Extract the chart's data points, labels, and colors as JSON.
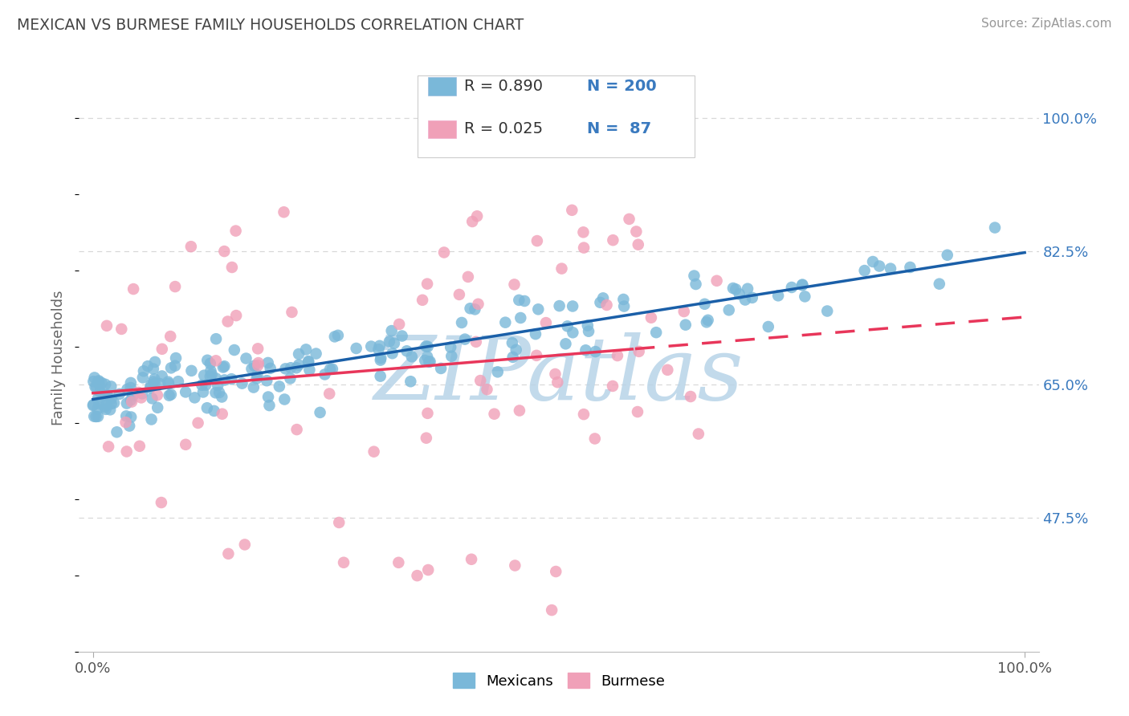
{
  "title": "MEXICAN VS BURMESE FAMILY HOUSEHOLDS CORRELATION CHART",
  "source": "Source: ZipAtlas.com",
  "ylabel": "Family Households",
  "mexican_R": 0.89,
  "mexican_N": 200,
  "burmese_R": 0.025,
  "burmese_N": 87,
  "blue_color": "#7ab8d9",
  "pink_color": "#f0a0b8",
  "blue_line_color": "#1a5fa8",
  "pink_line_color": "#e8365a",
  "ytick_labels": [
    "47.5%",
    "65.0%",
    "82.5%",
    "100.0%"
  ],
  "ytick_values": [
    0.475,
    0.65,
    0.825,
    1.0
  ],
  "legend_color": "#3a7abf",
  "watermark_text": "ZIPatlas",
  "watermark_color": "#b8d4e8",
  "background_color": "#ffffff",
  "grid_color": "#d8d8d8",
  "title_color": "#444444",
  "source_color": "#999999",
  "ylabel_color": "#666666"
}
